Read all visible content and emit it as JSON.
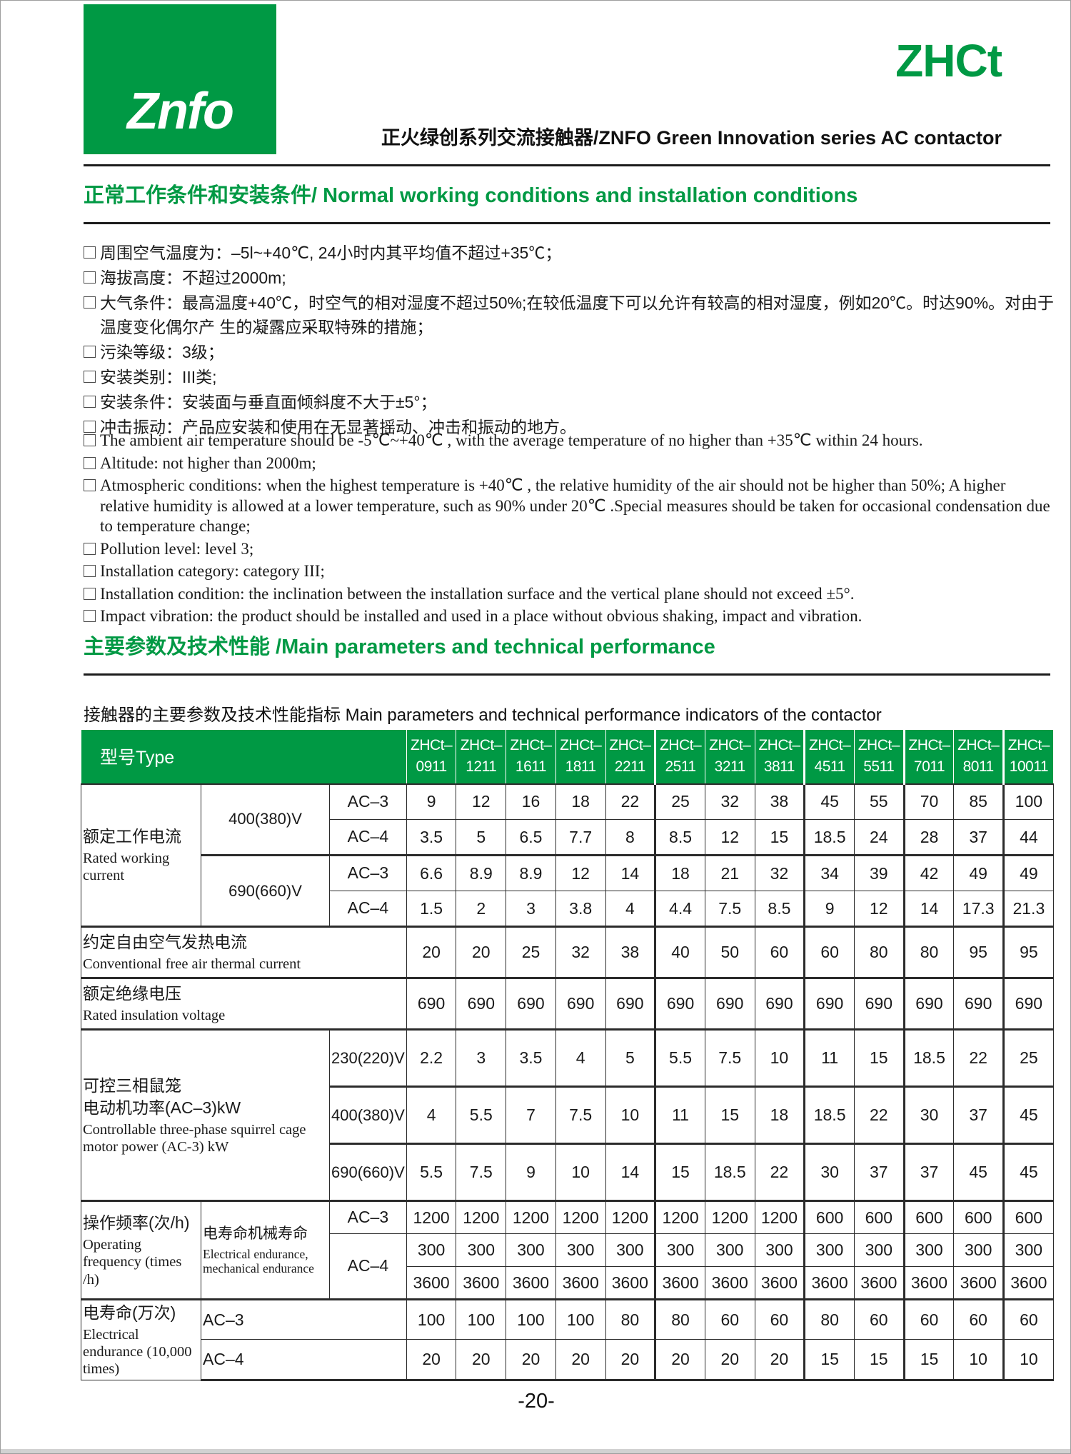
{
  "colors": {
    "brand_green": "#009944",
    "text": "#1a1a1a",
    "table_border": "#2b2b2b",
    "page_border": "#9e9e9e"
  },
  "header": {
    "logo": "Znfo",
    "product": "ZHCt",
    "subtitle": "正火绿创系列交流接触器/ZNFO Green Innovation series AC contactor"
  },
  "section1": {
    "title": "正常工作条件和安装条件/ Normal working conditions and installation conditions",
    "items_cn": [
      "周围空气温度为：–5l~+40℃, 24小时内其平均值不超过+35℃；",
      "海拔高度：不超过2000m;",
      "大气条件：最高温度+40℃，时空气的相对湿度不超过50%;在较低温度下可以允许有较高的相对湿度，例如20℃。时达90%。对由于温度变化偶尔产 生的凝露应采取特殊的措施；",
      "污染等级：3级；",
      "安装类别：III类;",
      "安装条件：安装面与垂直面倾斜度不大于±5°；",
      "冲击振动：产品应安装和使用在无显著摇动、冲击和振动的地方。"
    ],
    "items_en": [
      "The ambient air temperature should be -5℃~+40℃ , with the average temperature of no higher than +35℃ within 24 hours.",
      "Altitude: not higher than 2000m;",
      "Atmospheric conditions: when the highest temperature is +40℃ , the relative humidity of the air should not be higher than 50%; A higher relative humidity is allowed at a lower temperature, such as 90% under 20℃ .Special measures should be taken for occasional condensation due to temperature change;",
      "Pollution level: level 3;",
      "Installation category: category III;",
      "Installation condition: the inclination between the installation surface and the vertical plane should not exceed ±5°.",
      "Impact vibration: the product should be installed and used in a place without obvious shaking, impact and vibration."
    ]
  },
  "section2": {
    "title": "主要参数及技术性能 /Main parameters and technical performance",
    "intro": "接触器的主要参数及技术性能指标 Main parameters and technical performance indicators of the contactor"
  },
  "table": {
    "type_header": "型号Type",
    "model_prefix": "ZHCt–",
    "models": [
      "0911",
      "1211",
      "1611",
      "1811",
      "2211",
      "2511",
      "3211",
      "3811",
      "4511",
      "5511",
      "7011",
      "8011",
      "10011"
    ],
    "rows": [
      {
        "h": "h50",
        "cells": [
          {
            "cn": "额定工作电流",
            "en": "Rated working current",
            "rs": 4,
            "cls": "lbl"
          },
          {
            "cn": "400(380)V",
            "rs": 2,
            "cls": "volt"
          },
          {
            "cn": "AC–3",
            "cls": "ac"
          }
        ],
        "values": [
          "9",
          "12",
          "16",
          "18",
          "22",
          "25",
          "32",
          "38",
          "45",
          "55",
          "70",
          "85",
          "100"
        ]
      },
      {
        "h": "h50",
        "cells": [
          {
            "cn": "AC–4",
            "cls": "ac"
          }
        ],
        "values": [
          "3.5",
          "5",
          "6.5",
          "7.7",
          "8",
          "8.5",
          "12",
          "15",
          "18.5",
          "24",
          "28",
          "37",
          "44"
        ]
      },
      {
        "h": "h50",
        "thick": true,
        "cells": [
          {
            "cn": "690(660)V",
            "rs": 2,
            "cls": "volt"
          },
          {
            "cn": "AC–3",
            "cls": "ac"
          }
        ],
        "values": [
          "6.6",
          "8.9",
          "8.9",
          "12",
          "14",
          "18",
          "21",
          "32",
          "34",
          "39",
          "42",
          "49",
          "49"
        ]
      },
      {
        "h": "h50",
        "cells": [
          {
            "cn": "AC–4",
            "cls": "ac"
          }
        ],
        "values": [
          "1.5",
          "2",
          "3",
          "3.8",
          "4",
          "4.4",
          "7.5",
          "8.5",
          "9",
          "12",
          "14",
          "17.3",
          "21.3"
        ]
      },
      {
        "h": "h72",
        "thick": true,
        "cells": [
          {
            "cn": "约定自由空气发热电流",
            "en": "Conventional free air thermal current",
            "cs": 3,
            "cls": "lbl"
          }
        ],
        "values": [
          "20",
          "20",
          "25",
          "32",
          "38",
          "40",
          "50",
          "60",
          "60",
          "80",
          "80",
          "95",
          "95"
        ]
      },
      {
        "h": "h72",
        "thick": true,
        "cells": [
          {
            "cn": "额定绝缘电压",
            "en": "Rated insulation voltage",
            "cs": 3,
            "cls": "lbl"
          }
        ],
        "values": [
          "690",
          "690",
          "690",
          "690",
          "690",
          "690",
          "690",
          "690",
          "690",
          "690",
          "690",
          "690",
          "690"
        ]
      },
      {
        "h": "h80",
        "thick": true,
        "cells": [
          {
            "cn": "可控三相鼠笼\n电动机功率(AC–3)kW",
            "en": "Controllable three-phase squirrel cage motor power (AC-3) kW",
            "rs": 3,
            "cs": 2,
            "cls": "lbl"
          },
          {
            "cn": "230(220)V",
            "cls": "volt"
          }
        ],
        "values": [
          "2.2",
          "3",
          "3.5",
          "4",
          "5",
          "5.5",
          "7.5",
          "10",
          "11",
          "15",
          "18.5",
          "22",
          "25"
        ]
      },
      {
        "h": "h80",
        "thick": true,
        "cells": [
          {
            "cn": "400(380)V",
            "cls": "volt"
          }
        ],
        "values": [
          "4",
          "5.5",
          "7",
          "7.5",
          "10",
          "11",
          "15",
          "18",
          "18.5",
          "22",
          "30",
          "37",
          "45"
        ]
      },
      {
        "h": "h80",
        "thick": true,
        "cells": [
          {
            "cn": "690(660)V",
            "cls": "volt"
          }
        ],
        "values": [
          "5.5",
          "7.5",
          "9",
          "10",
          "14",
          "15",
          "18.5",
          "22",
          "30",
          "37",
          "37",
          "45",
          "45"
        ]
      },
      {
        "h": "h46",
        "thick": true,
        "cells": [
          {
            "cn": "操作频率(次/h)",
            "en": "Operating frequency (times /h)",
            "rs": 3,
            "cls": "lbl"
          },
          {
            "cn": "电寿命机械寿命",
            "en": "Electrical endurance, mechanical endurance",
            "rs": 3,
            "cls": "lbl small"
          },
          {
            "cn": "AC–3",
            "cls": "ac"
          }
        ],
        "values": [
          "1200",
          "1200",
          "1200",
          "1200",
          "1200",
          "1200",
          "1200",
          "1200",
          "600",
          "600",
          "600",
          "600",
          "600"
        ]
      },
      {
        "h": "h46",
        "cells": [
          {
            "cn": "AC–4",
            "rs": 2,
            "cls": "ac"
          }
        ],
        "values": [
          "300",
          "300",
          "300",
          "300",
          "300",
          "300",
          "300",
          "300",
          "300",
          "300",
          "300",
          "300",
          "300"
        ]
      },
      {
        "h": "h46",
        "cells": [],
        "values": [
          "3600",
          "3600",
          "3600",
          "3600",
          "3600",
          "3600",
          "3600",
          "3600",
          "3600",
          "3600",
          "3600",
          "3600",
          "3600"
        ]
      },
      {
        "h": "h44",
        "thick": true,
        "cells": [
          {
            "cn": "电寿命(万次)",
            "en": "Electrical endurance (10,000 times)",
            "rs": 2,
            "cls": "lbl"
          },
          {
            "cn": "AC–3",
            "cs": 2,
            "cls": "acl"
          }
        ],
        "values": [
          "100",
          "100",
          "100",
          "100",
          "80",
          "80",
          "60",
          "60",
          "80",
          "60",
          "60",
          "60",
          "60"
        ]
      },
      {
        "h": "h44",
        "cells": [
          {
            "cn": "AC–4",
            "cs": 2,
            "cls": "acl"
          }
        ],
        "values": [
          "20",
          "20",
          "20",
          "20",
          "20",
          "20",
          "20",
          "20",
          "15",
          "15",
          "15",
          "10",
          "10"
        ]
      }
    ]
  },
  "footer": {
    "page_label": "-20-"
  }
}
